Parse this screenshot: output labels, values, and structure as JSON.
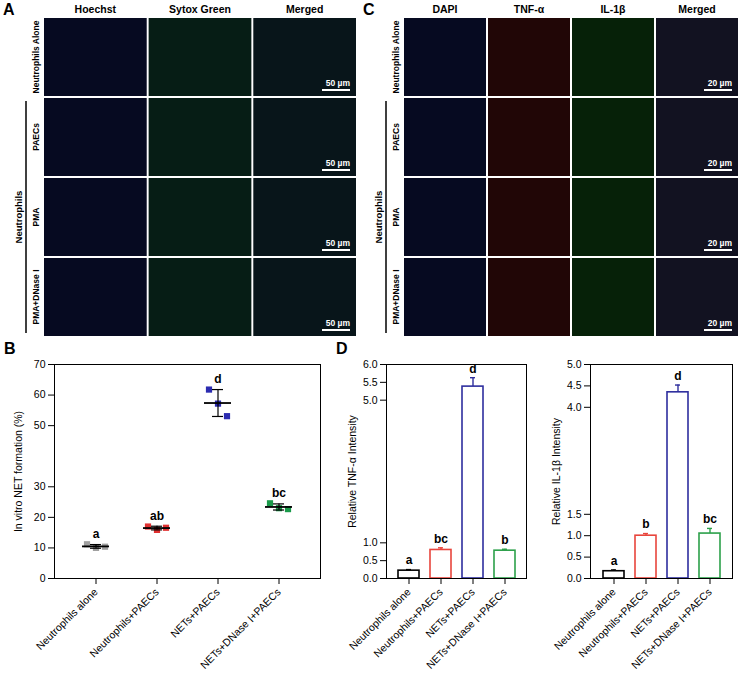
{
  "image_panels": [
    {
      "panel": "A",
      "columns": [
        {
          "name": "Hoechst",
          "color": "#2f4bff"
        },
        {
          "name": "Sytox Green",
          "color": "#2fe3a0"
        },
        {
          "name": "Merged",
          "color": "#3ca6c8"
        }
      ],
      "rows": [
        "Neutrophils Alone",
        "PAECs",
        "PMA",
        "PMA+DNase I"
      ],
      "group": {
        "label": "Neutrophils",
        "rows": [
          "PAECs",
          "PMA",
          "PMA+DNase I"
        ]
      },
      "scale_bar": "50 µm"
    },
    {
      "panel": "C",
      "columns": [
        {
          "name": "DAPI",
          "color": "#2f4bff"
        },
        {
          "name": "TNF-α",
          "color": "#ff3030"
        },
        {
          "name": "IL-1β",
          "color": "#30ff40"
        },
        {
          "name": "Merged",
          "color": "#8a8aff"
        }
      ],
      "rows": [
        "Neutrophils Alone",
        "PAECs",
        "PMA",
        "PMA+DNase I"
      ],
      "group": {
        "label": "Neutrophils",
        "rows": [
          "PAECs",
          "PMA",
          "PMA+DNase I"
        ]
      },
      "scale_bar": "20 µm"
    }
  ],
  "chart_data": [
    {
      "panel": "B",
      "type": "scatter",
      "categories": [
        "Neutrophils alone",
        "Neutrophils+PAECs",
        "NETs+PAECs",
        "NETs+DNase Ⅰ+PAECs"
      ],
      "points": [
        [
          11.2,
          10.0,
          10.4
        ],
        [
          17.0,
          15.9,
          16.6
        ],
        [
          61.8,
          57.2,
          53.1
        ],
        [
          24.6,
          23.0,
          22.7
        ]
      ],
      "means": [
        10.5,
        16.5,
        57.4,
        23.4
      ],
      "errors": [
        0.6,
        0.6,
        4.4,
        1.0
      ],
      "annotations": [
        "a",
        "ab",
        "d",
        "bc"
      ],
      "ylabel": "In vitro NET formation (%)",
      "ylim": [
        0,
        70
      ],
      "yticks": [
        0,
        10,
        20,
        30,
        50,
        60,
        70
      ],
      "colors": [
        "#a0a0a0",
        "#e03030",
        "#2b2bb0",
        "#1a9a4a"
      ],
      "marker": "square"
    },
    {
      "panel": "D",
      "type": "bar",
      "categories": [
        "Neutrophils alone",
        "Neutrophils+PAECs",
        "NETs+PAECs",
        "NETs+DNase Ⅰ+PAECs"
      ],
      "values": [
        0.22,
        0.8,
        5.38,
        0.78
      ],
      "errors": [
        0.03,
        0.06,
        0.25,
        0.04
      ],
      "annotations": [
        "a",
        "bc",
        "d",
        "b"
      ],
      "ylabel": "Relative TNF-α Intensity",
      "ylim": [
        0,
        6
      ],
      "yticks": [
        {
          "value": 0,
          "label": "0.0"
        },
        0.5,
        {
          "value": 1,
          "label": "1.0"
        },
        {
          "value": 5,
          "label": "5.0"
        },
        5.5,
        {
          "value": 6,
          "label": "6.0"
        }
      ],
      "colors": [
        "#000000",
        "#e8453c",
        "#2e2e9e",
        "#2ca04a"
      ]
    },
    {
      "type": "bar",
      "categories": [
        "Neutrophils alone",
        "Neutrophils+PAECs",
        "NETs+PAECs",
        "NETs+DNase Ⅰ+PAECs"
      ],
      "values": [
        0.17,
        1.0,
        4.35,
        1.05
      ],
      "errors": [
        0.03,
        0.05,
        0.17,
        0.12
      ],
      "annotations": [
        "a",
        "b",
        "d",
        "bc"
      ],
      "ylabel": "Relative IL-1β Intensity",
      "ylim": [
        0,
        5
      ],
      "yticks": [
        {
          "value": 0,
          "label": "0.0"
        },
        0.5,
        {
          "value": 1,
          "label": "1.0"
        },
        1.5,
        {
          "value": 4,
          "label": "4.0"
        },
        4.5,
        {
          "value": 5,
          "label": "5.0"
        }
      ],
      "colors": [
        "#000000",
        "#e8453c",
        "#2e2e9e",
        "#2ca04a"
      ]
    }
  ]
}
